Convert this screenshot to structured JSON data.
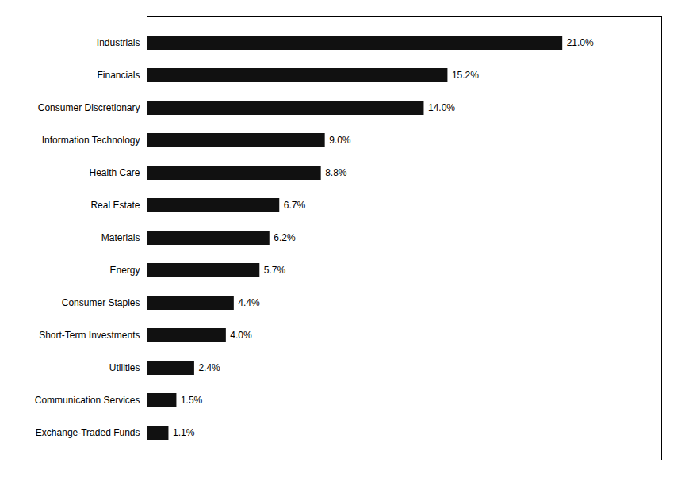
{
  "chart_data": {
    "type": "bar",
    "orientation": "horizontal",
    "categories": [
      "Exchange-Traded Funds",
      "Communication Services",
      "Utilities",
      "Short-Term Investments",
      "Consumer Staples",
      "Energy",
      "Materials",
      "Real Estate",
      "Health Care",
      "Information Technology",
      "Consumer Discretionary",
      "Financials",
      "Industrials"
    ],
    "values": [
      1.1,
      1.5,
      2.4,
      4.0,
      4.4,
      5.7,
      6.2,
      6.7,
      8.8,
      9.0,
      14.0,
      15.2,
      21.0
    ],
    "value_labels": [
      "1.1%",
      "1.5%",
      "2.4%",
      "4.0%",
      "4.4%",
      "5.7%",
      "6.2%",
      "6.7%",
      "8.8%",
      "9.0%",
      "14.0%",
      "15.2%",
      "21.0%"
    ],
    "color": "#111111",
    "xlim": [
      0,
      26
    ],
    "data_labels": true,
    "tick_labels": "y",
    "grid": false
  }
}
